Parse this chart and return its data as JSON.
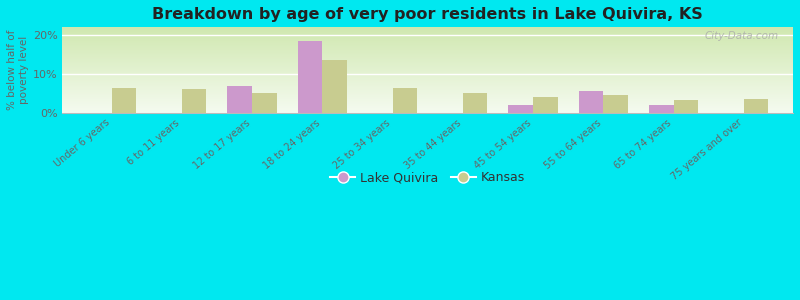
{
  "title": "Breakdown by age of very poor residents in Lake Quivira, KS",
  "ylabel": "% below half of\npoverty level",
  "categories": [
    "Under 6 years",
    "6 to 11 years",
    "12 to 17 years",
    "18 to 24 years",
    "25 to 34 years",
    "35 to 44 years",
    "45 to 54 years",
    "55 to 64 years",
    "65 to 74 years",
    "75 years and over"
  ],
  "lake_quivira": [
    0,
    0,
    7.0,
    18.5,
    0,
    0,
    2.0,
    5.5,
    2.0,
    0
  ],
  "kansas": [
    6.5,
    6.2,
    5.0,
    13.5,
    6.5,
    5.2,
    4.0,
    4.5,
    3.2,
    3.5
  ],
  "color_lq": "#cc99cc",
  "color_ks": "#c8cc90",
  "background_outer": "#00e8f0",
  "ylim": [
    0,
    22
  ],
  "yticks": [
    0,
    10,
    20
  ],
  "ytick_labels": [
    "0%",
    "10%",
    "20%"
  ],
  "watermark": "City-Data.com",
  "legend_lq": "Lake Quivira",
  "legend_ks": "Kansas",
  "bar_width": 0.35
}
